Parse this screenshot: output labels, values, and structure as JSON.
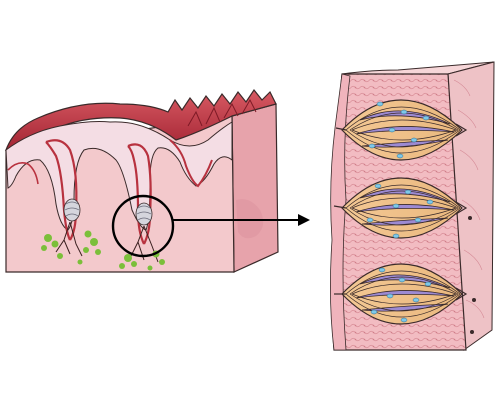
{
  "figure": {
    "left_panel": "tongue-surface-block",
    "right_panel": "taste-bud-enlargement",
    "taste_bud_count": 3,
    "colors": {
      "tissue_pink": "#f3c9cc",
      "tissue_side": "#e9a9b0",
      "epithelium_red": "#b8323f",
      "epithelium_light": "#f4dde4",
      "outline": "#3a2a2a",
      "cell_orange": "#f1c48e",
      "cell_purple": "#9c8ad2",
      "nucleus_blue": "#7fc8e8",
      "nerve_green": "#7bbf3a",
      "callout": "#000000"
    }
  }
}
